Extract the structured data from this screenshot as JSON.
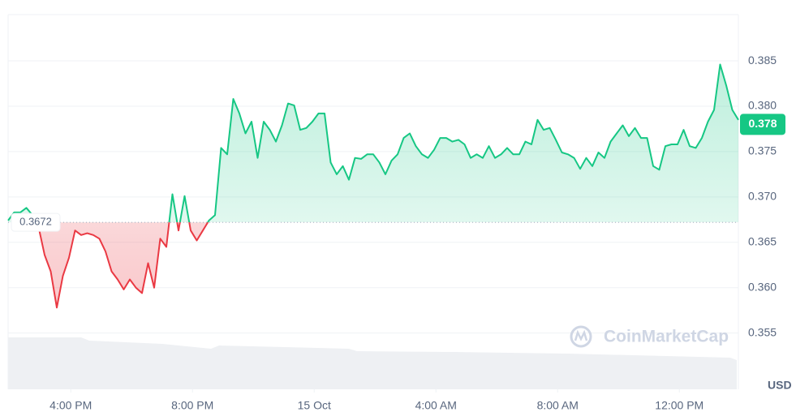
{
  "chart_data": {
    "type": "line",
    "values": [
      0.3674,
      0.3683,
      0.3683,
      0.3688,
      0.368,
      0.3667,
      0.3636,
      0.3618,
      0.3578,
      0.3613,
      0.3633,
      0.3663,
      0.3658,
      0.366,
      0.3658,
      0.3654,
      0.364,
      0.3618,
      0.3609,
      0.3598,
      0.3609,
      0.36,
      0.3594,
      0.3627,
      0.36,
      0.3654,
      0.3645,
      0.3703,
      0.3663,
      0.3701,
      0.3663,
      0.3652,
      0.3663,
      0.3674,
      0.368,
      0.3754,
      0.3747,
      0.3808,
      0.3792,
      0.377,
      0.3783,
      0.3743,
      0.3783,
      0.3774,
      0.3761,
      0.3779,
      0.3803,
      0.3801,
      0.3774,
      0.3776,
      0.3783,
      0.3792,
      0.3792,
      0.3738,
      0.3725,
      0.3734,
      0.3719,
      0.3743,
      0.3742,
      0.3747,
      0.3747,
      0.3738,
      0.3725,
      0.374,
      0.3747,
      0.3765,
      0.377,
      0.3756,
      0.3747,
      0.3743,
      0.3752,
      0.3765,
      0.3765,
      0.3761,
      0.3763,
      0.3758,
      0.3743,
      0.3747,
      0.3743,
      0.3756,
      0.3743,
      0.3747,
      0.3754,
      0.3747,
      0.3747,
      0.3761,
      0.3758,
      0.3785,
      0.3774,
      0.3776,
      0.3763,
      0.3749,
      0.3747,
      0.3743,
      0.3731,
      0.3743,
      0.3734,
      0.3749,
      0.3743,
      0.3761,
      0.377,
      0.3779,
      0.3767,
      0.3776,
      0.3765,
      0.3765,
      0.3734,
      0.373,
      0.3756,
      0.3758,
      0.3758,
      0.3774,
      0.3756,
      0.3754,
      0.3765,
      0.3783,
      0.3796,
      0.3846,
      0.3823,
      0.3796,
      0.3785
    ],
    "baseline": 0.3672,
    "last_price": 0.378,
    "colors": {
      "up": "#16c784",
      "down": "#ea3943"
    },
    "xlim": [
      0,
      120
    ],
    "xticks": [
      {
        "value": 10.3,
        "label": "4:00 PM"
      },
      {
        "value": 30.3,
        "label": "8:00 PM"
      },
      {
        "value": 50.3,
        "label": "15 Oct"
      },
      {
        "value": 70.3,
        "label": "4:00 AM"
      },
      {
        "value": 90.3,
        "label": "8:00 AM"
      },
      {
        "value": 110.3,
        "label": "12:00 PM"
      }
    ],
    "ylim": [
      0.3488,
      0.3901
    ],
    "yticks": [
      0.355,
      {
        "value": 0.36,
        "label": "0.360"
      },
      0.365,
      {
        "value": 0.37,
        "label": "0.370"
      },
      0.375,
      {
        "value": 0.38,
        "label": "0.380"
      },
      0.385
    ],
    "currency": "USD",
    "watermark": "CoinMarketCap",
    "grid": true
  }
}
